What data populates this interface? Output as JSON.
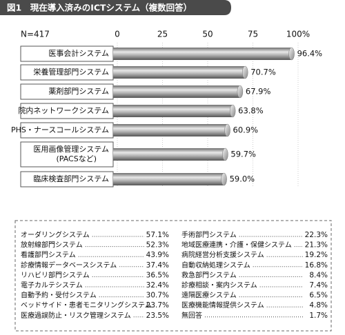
{
  "chart_data": {
    "type": "bar",
    "title": "図1　現在導入済みのICTシステム（複数回答）",
    "subtitle": "N=417",
    "categories": [
      "医事会計システム",
      "栄養管理部門システム",
      "薬剤部門システム",
      "院内ネットワークシステム",
      "PHS・ナースコールシステム",
      "医用画像管理システム\n(PACSなど)",
      "臨床検査部門システム"
    ],
    "values": [
      96.4,
      70.7,
      67.9,
      63.8,
      60.9,
      59.7,
      59.0
    ],
    "value_labels": [
      "96.4%",
      "70.7%",
      "67.9%",
      "63.8%",
      "60.9%",
      "59.7%",
      "59.0%"
    ],
    "color": "#8a8a8a",
    "xlim": [
      0,
      100
    ],
    "xticks": [
      0,
      25,
      50,
      75,
      {
        "value": 100,
        "label": "100%"
      }
    ],
    "grid": true
  },
  "others": {
    "left": [
      [
        "オーダリングシステム",
        "57.1%"
      ],
      [
        "放射線部門システム",
        "52.3%"
      ],
      [
        "看護部門システム",
        "43.9%"
      ],
      [
        "診療情報データベースシステム",
        "37.4%"
      ],
      [
        "リハビリ部門システム",
        "36.5%"
      ],
      [
        "電子カルテシステム",
        "32.4%"
      ],
      [
        "自動予約・受付システム",
        "30.7%"
      ],
      [
        "ベッドサイド・患者モニタリングシステム",
        "23.7%"
      ],
      [
        "医療過誤防止・リスク管理システム",
        "23.5%"
      ]
    ],
    "right": [
      [
        "手術部門システム",
        "22.3%"
      ],
      [
        "地域医療連携・介護・保健システム",
        "21.3%"
      ],
      [
        "病院経営分析支援システム",
        "19.2%"
      ],
      [
        "自動収納処理システム",
        "16.8%"
      ],
      [
        "救急部門システム",
        "8.4%"
      ],
      [
        "診療相談・案内システム",
        "7.4%"
      ],
      [
        "遠隔医療システム",
        "6.5%"
      ],
      [
        "医療機能情報提供システム",
        "4.8%"
      ],
      [
        "無回答",
        "1.7%"
      ]
    ]
  }
}
